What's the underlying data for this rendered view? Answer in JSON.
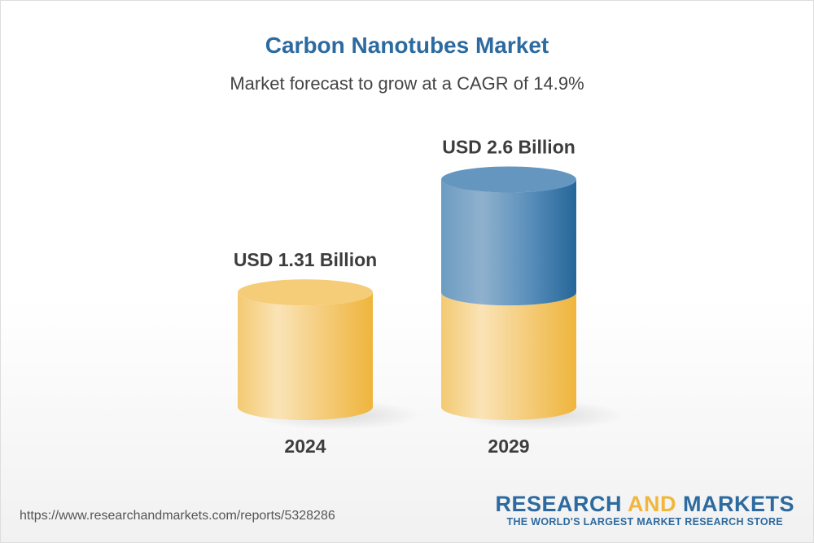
{
  "chart_data": {
    "type": "bar",
    "title": "Carbon Nanotubes Market",
    "subtitle": "Market forecast to grow at a CAGR of 14.9%",
    "categories": [
      "2024",
      "2029"
    ],
    "values": [
      1.31,
      2.6
    ],
    "data_labels": [
      "USD 1.31 Billion",
      "USD 2.6 Billion"
    ],
    "unit": "USD Billion",
    "style": "3d-cylinder",
    "colors": {
      "base": "#f0b73e",
      "growth": "#2c6aa0",
      "title": "#2c6aa0"
    }
  },
  "footer": {
    "url": "https://www.researchandmarkets.com/reports/5328286",
    "logo_line1_a": "RESEARCH ",
    "logo_line1_b": "AND",
    "logo_line1_c": " MARKETS",
    "logo_line2": "THE WORLD'S LARGEST MARKET RESEARCH STORE"
  }
}
